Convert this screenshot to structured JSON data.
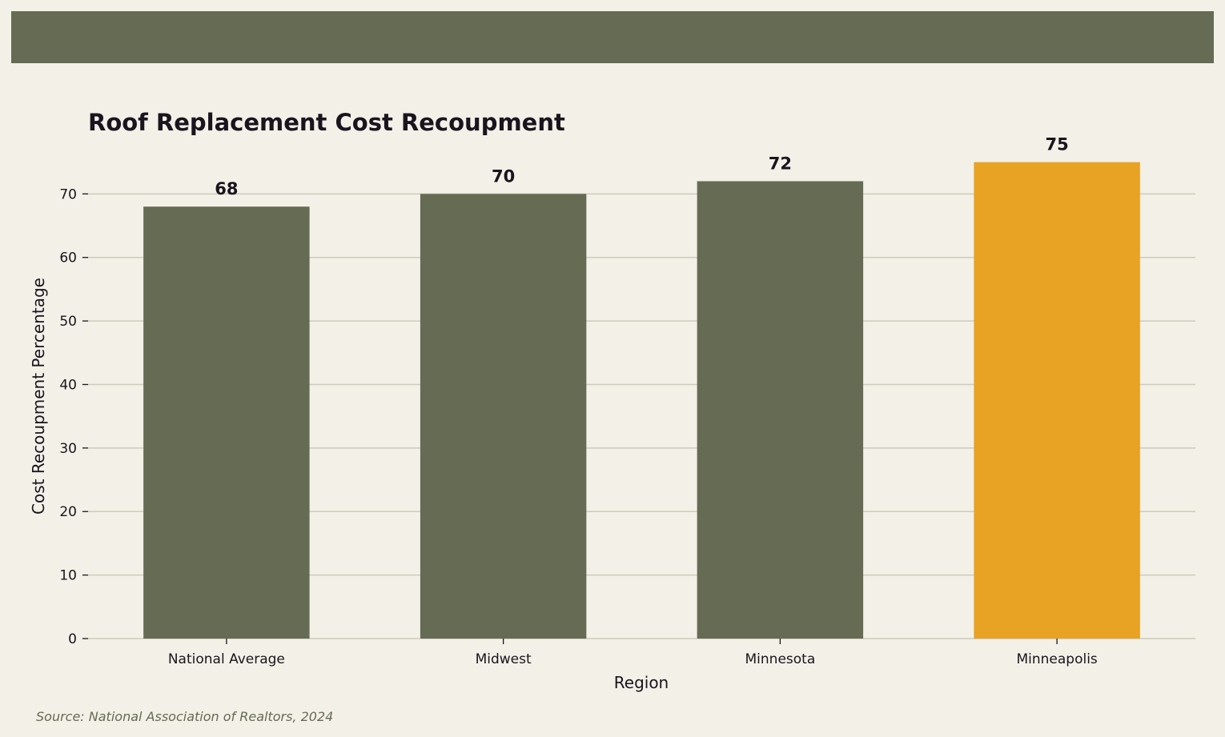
{
  "chart_data": {
    "type": "bar",
    "title": "Roof Replacement Cost Recoupment",
    "xlabel": "Region",
    "ylabel": "Cost Recoupment Percentage",
    "categories": [
      "National Average",
      "Midwest",
      "Minnesota",
      "Minneapolis"
    ],
    "values": [
      68,
      70,
      72,
      75
    ],
    "data_labels": [
      "68",
      "70",
      "72",
      "75"
    ],
    "ylim": [
      0,
      77.6
    ],
    "yticks": [
      0,
      10,
      20,
      30,
      40,
      50,
      60,
      70
    ],
    "grid": true,
    "colors": {
      "bar": "#666b54",
      "highlight": "#e8a224",
      "grid": "#cccbbb",
      "text": "#1a141e"
    },
    "highlight_category": "Minneapolis"
  },
  "footer": {
    "source": "Source: National Association of Realtors, 2024"
  }
}
